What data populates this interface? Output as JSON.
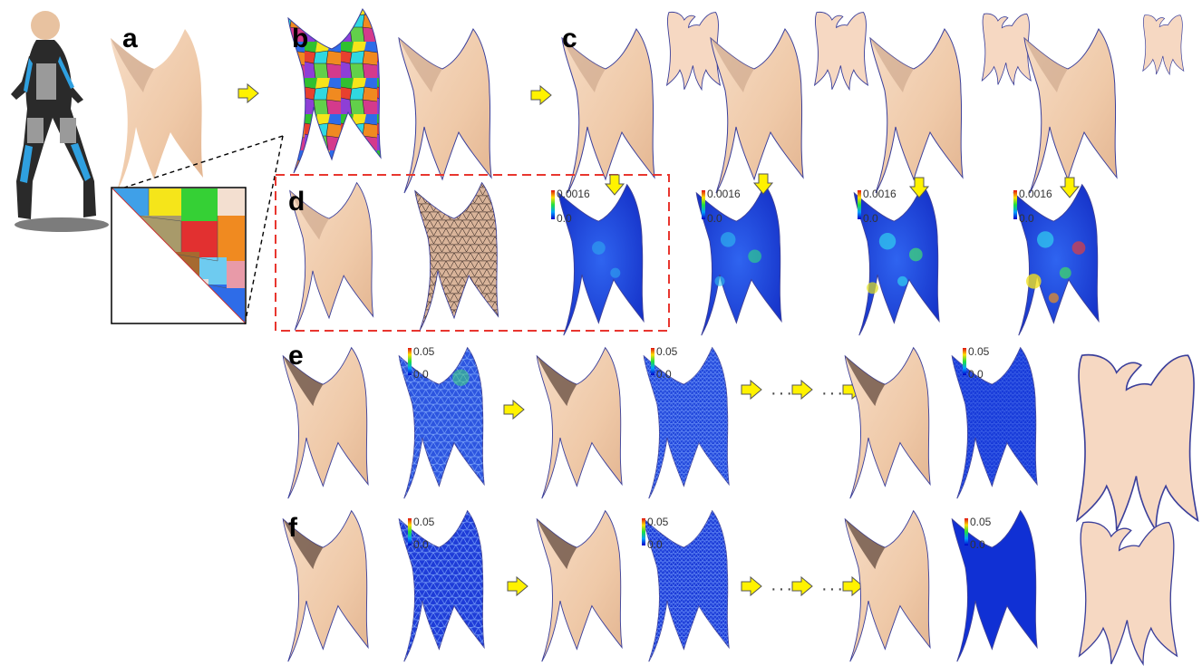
{
  "panel_labels": {
    "a": "a",
    "b": "b",
    "c": "c",
    "d": "d",
    "e": "e",
    "f": "f"
  },
  "colorbar_d": {
    "max": "0.0016",
    "min": "0.0"
  },
  "colorbar_ef": {
    "max": "0.05",
    "min": "0.0"
  },
  "ellipsis": "···",
  "colors": {
    "skin": "#F3D2B6",
    "outline": "#3B3F9A",
    "error_blue": "#1538D8",
    "arrow": "#FFF200",
    "dashed_box": "#E8362F"
  }
}
